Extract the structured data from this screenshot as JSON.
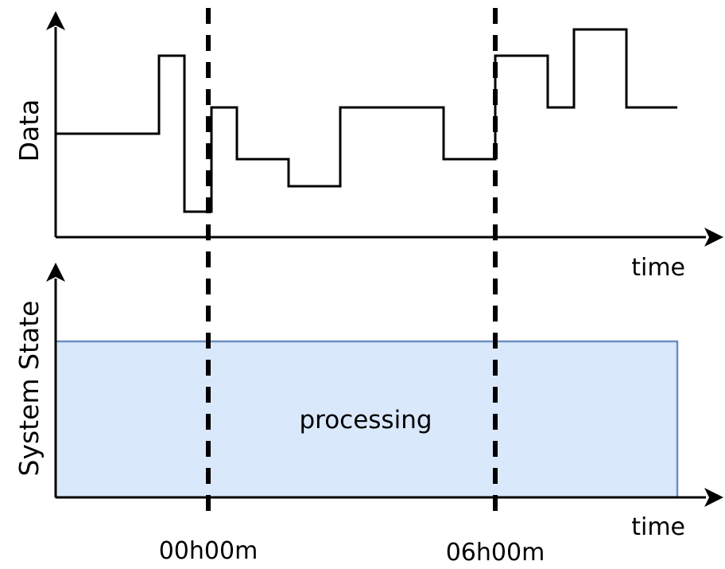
{
  "top_panel": {
    "y_axis_label": "Data",
    "x_axis_label": "time"
  },
  "bottom_panel": {
    "y_axis_label": "System State",
    "x_axis_label": "time",
    "state_label": "processing",
    "state_fill_color": "#dae8fc",
    "state_stroke_color": "#6c8ebf"
  },
  "markers": [
    {
      "label": "00h00m"
    },
    {
      "label": "06h00m"
    }
  ],
  "colors": {
    "line": "#000000",
    "background": "#ffffff"
  }
}
